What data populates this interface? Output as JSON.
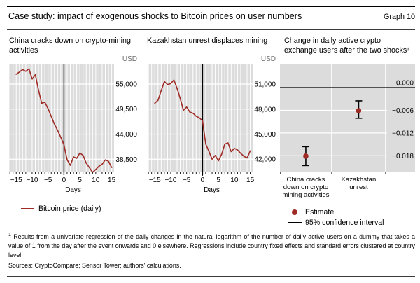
{
  "header": {
    "title": "Case study: impact of exogenous shocks to Bitcoin prices on user numbers",
    "graph_label": "Graph 10"
  },
  "legend": {
    "bitcoin": "Bitcoin price (daily)",
    "estimate": "Estimate",
    "ci": "95% confidence interval"
  },
  "footnote": {
    "marker": "1",
    "text": "Results from a univariate regression of the daily changes in the natural logarithm of the number of daily active users on a dummy that takes a value of 1 from the day after the event onwards and 0 elsewhere. Regressions include country fixed effects and standard errors clustered at country level."
  },
  "sources": "Sources: CryptoCompare; Sensor Tower; authors' calculations.",
  "colors": {
    "accent_red": "#9e2b25",
    "plot_bg": "#dcdcdc",
    "grid": "#ffffff",
    "axis": "#000000"
  },
  "chart_data": [
    {
      "type": "line",
      "title_lines": [
        "China cracks down on crypto-mining",
        "activities"
      ],
      "unit": "USD",
      "xlabel": "Days",
      "legend_entry": "Bitcoin price (daily)",
      "event_day": 0,
      "xlim": [
        -17.25,
        15.75
      ],
      "ylim": [
        35770,
        59460
      ],
      "grid": true,
      "yticks": [
        {
          "v": 55000,
          "label": "55,000"
        },
        {
          "v": 49500,
          "label": "49,500"
        },
        {
          "v": 44000,
          "label": "44,000"
        },
        {
          "v": 38500,
          "label": "38,500"
        }
      ],
      "xticks": [
        {
          "v": -15,
          "label": "−15"
        },
        {
          "v": -10,
          "label": "−10"
        },
        {
          "v": -5,
          "label": "−5"
        },
        {
          "v": 0,
          "label": "0"
        },
        {
          "v": 5,
          "label": "5"
        },
        {
          "v": 10,
          "label": "10"
        },
        {
          "v": 15,
          "label": "15"
        }
      ],
      "x": [
        -15,
        -14,
        -13,
        -12,
        -11,
        -10,
        -9,
        -8,
        -7,
        -6,
        -5,
        -4,
        -3,
        -2,
        -1,
        0,
        1,
        2,
        3,
        4,
        5,
        6,
        7,
        8,
        9,
        10,
        11,
        12,
        13,
        14,
        15
      ],
      "series": [
        {
          "name": "Bitcoin price (daily)",
          "values": [
            57150,
            57650,
            58200,
            57800,
            58350,
            56100,
            57050,
            53700,
            50800,
            51000,
            49600,
            47900,
            46200,
            44850,
            43300,
            41650,
            38350,
            37150,
            39000,
            38700,
            39850,
            39350,
            37650,
            36650,
            35600,
            36250,
            36950,
            37400,
            38350,
            38050,
            36700
          ]
        }
      ]
    },
    {
      "type": "line",
      "title_lines": [
        "Kazakhstan unrest displaces mining"
      ],
      "unit": "USD",
      "xlabel": "Days",
      "legend_entry": "Bitcoin price (daily)",
      "event_day": 0,
      "xlim": [
        -17.25,
        15.75
      ],
      "ylim": [
        40510,
        53435
      ],
      "grid": true,
      "yticks": [
        {
          "v": 51000,
          "label": "51,000"
        },
        {
          "v": 48000,
          "label": "48,000"
        },
        {
          "v": 45000,
          "label": "45,000"
        },
        {
          "v": 42000,
          "label": "42,000"
        }
      ],
      "xticks": [
        {
          "v": -15,
          "label": "−15"
        },
        {
          "v": -10,
          "label": "−10"
        },
        {
          "v": -5,
          "label": "−5"
        },
        {
          "v": 0,
          "label": "0"
        },
        {
          "v": 5,
          "label": "5"
        },
        {
          "v": 10,
          "label": "10"
        },
        {
          "v": 15,
          "label": "15"
        }
      ],
      "x": [
        -15,
        -14,
        -13,
        -12,
        -11,
        -10,
        -9,
        -8,
        -7,
        -6,
        -5,
        -4,
        -3,
        -2,
        -1,
        0,
        1,
        2,
        3,
        4,
        5,
        6,
        7,
        8,
        9,
        10,
        11,
        12,
        13,
        14,
        15
      ],
      "series": [
        {
          "name": "Bitcoin price (daily)",
          "values": [
            48700,
            49050,
            50200,
            51300,
            50950,
            51050,
            51500,
            50500,
            49250,
            47850,
            48250,
            47650,
            47500,
            47150,
            46950,
            46600,
            43800,
            42950,
            42000,
            42450,
            41800,
            42600,
            43800,
            43950,
            42900,
            43300,
            43100,
            42700,
            42350,
            42150,
            43000
          ]
        }
      ]
    },
    {
      "type": "errorbar",
      "title_lines": [
        "Change in daily active crypto",
        "exchange users after the two shocks¹"
      ],
      "ylim": [
        -0.0222,
        0.0063
      ],
      "grid": true,
      "yticks": [
        {
          "v": 0,
          "label": "0.000"
        },
        {
          "v": -0.006,
          "label": "−0.006"
        },
        {
          "v": -0.012,
          "label": "−0.012"
        },
        {
          "v": -0.018,
          "label": "−0.018"
        }
      ],
      "categories": [
        {
          "label_lines": [
            "China cracks",
            "down on crypto",
            "mining activities"
          ],
          "estimate": -0.0181,
          "ci": [
            -0.0206,
            -0.0156
          ]
        },
        {
          "label_lines": [
            "Kazakhstan",
            "unrest"
          ],
          "estimate": -0.0061,
          "ci": [
            -0.0081,
            -0.0035
          ]
        }
      ],
      "legend_entries": [
        "Estimate",
        "95% confidence interval"
      ]
    }
  ]
}
